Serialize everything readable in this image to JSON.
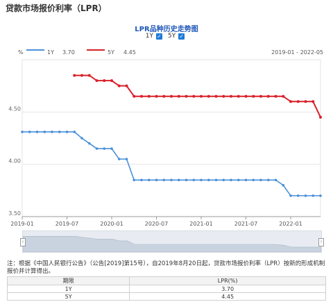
{
  "page_title": "贷款市场报价利率（LPR）",
  "chart_title": "LPR品种历史走势图",
  "toggles": [
    {
      "label": "1Y",
      "checked": true
    },
    {
      "label": "5Y",
      "checked": true
    }
  ],
  "legend": {
    "unit": "%",
    "one_y": {
      "name": "1Y",
      "value": "3.70",
      "color": "#4a90d9"
    },
    "five_y": {
      "name": "5Y",
      "value": "4.45",
      "color": "#d9202a"
    },
    "date_range": "2019-01 - 2022-05"
  },
  "chart_data": {
    "type": "line",
    "x_ticks": [
      "2019-01",
      "2019-07",
      "2020-01",
      "2020-07",
      "2021-01",
      "2021-07",
      "2022-01"
    ],
    "y_ticks": [
      "3.50",
      "4.00",
      "4.50"
    ],
    "ylim": [
      3.5,
      5.0
    ],
    "xlim": [
      "2019-01",
      "2022-05"
    ],
    "grid": true,
    "series": [
      {
        "name": "1Y",
        "color": "#4a90d9",
        "points": [
          [
            "2019-01",
            4.31
          ],
          [
            "2019-02",
            4.31
          ],
          [
            "2019-03",
            4.31
          ],
          [
            "2019-04",
            4.31
          ],
          [
            "2019-05",
            4.31
          ],
          [
            "2019-06",
            4.31
          ],
          [
            "2019-07",
            4.31
          ],
          [
            "2019-08",
            4.31
          ],
          [
            "2019-09",
            4.25
          ],
          [
            "2019-10",
            4.2
          ],
          [
            "2019-11",
            4.15
          ],
          [
            "2019-12",
            4.15
          ],
          [
            "2020-01",
            4.15
          ],
          [
            "2020-02",
            4.05
          ],
          [
            "2020-03",
            4.05
          ],
          [
            "2020-04",
            3.85
          ],
          [
            "2020-05",
            3.85
          ],
          [
            "2020-06",
            3.85
          ],
          [
            "2020-07",
            3.85
          ],
          [
            "2020-08",
            3.85
          ],
          [
            "2020-09",
            3.85
          ],
          [
            "2020-10",
            3.85
          ],
          [
            "2020-11",
            3.85
          ],
          [
            "2020-12",
            3.85
          ],
          [
            "2021-01",
            3.85
          ],
          [
            "2021-02",
            3.85
          ],
          [
            "2021-03",
            3.85
          ],
          [
            "2021-04",
            3.85
          ],
          [
            "2021-05",
            3.85
          ],
          [
            "2021-06",
            3.85
          ],
          [
            "2021-07",
            3.85
          ],
          [
            "2021-08",
            3.85
          ],
          [
            "2021-09",
            3.85
          ],
          [
            "2021-10",
            3.85
          ],
          [
            "2021-11",
            3.85
          ],
          [
            "2021-12",
            3.8
          ],
          [
            "2022-01",
            3.7
          ],
          [
            "2022-02",
            3.7
          ],
          [
            "2022-03",
            3.7
          ],
          [
            "2022-04",
            3.7
          ],
          [
            "2022-05",
            3.7
          ]
        ]
      },
      {
        "name": "5Y",
        "color": "#d9202a",
        "points": [
          [
            "2019-08",
            4.85
          ],
          [
            "2019-09",
            4.85
          ],
          [
            "2019-10",
            4.85
          ],
          [
            "2019-11",
            4.8
          ],
          [
            "2019-12",
            4.8
          ],
          [
            "2020-01",
            4.8
          ],
          [
            "2020-02",
            4.75
          ],
          [
            "2020-03",
            4.75
          ],
          [
            "2020-04",
            4.65
          ],
          [
            "2020-05",
            4.65
          ],
          [
            "2020-06",
            4.65
          ],
          [
            "2020-07",
            4.65
          ],
          [
            "2020-08",
            4.65
          ],
          [
            "2020-09",
            4.65
          ],
          [
            "2020-10",
            4.65
          ],
          [
            "2020-11",
            4.65
          ],
          [
            "2020-12",
            4.65
          ],
          [
            "2021-01",
            4.65
          ],
          [
            "2021-02",
            4.65
          ],
          [
            "2021-03",
            4.65
          ],
          [
            "2021-04",
            4.65
          ],
          [
            "2021-05",
            4.65
          ],
          [
            "2021-06",
            4.65
          ],
          [
            "2021-07",
            4.65
          ],
          [
            "2021-08",
            4.65
          ],
          [
            "2021-09",
            4.65
          ],
          [
            "2021-10",
            4.65
          ],
          [
            "2021-11",
            4.65
          ],
          [
            "2021-12",
            4.65
          ],
          [
            "2022-01",
            4.6
          ],
          [
            "2022-02",
            4.6
          ],
          [
            "2022-03",
            4.6
          ],
          [
            "2022-04",
            4.6
          ],
          [
            "2022-05",
            4.45
          ]
        ]
      }
    ]
  },
  "note": "注：根据《中国人民银行公告》（公告[2019]第15号），自2019年8月20日起，贷款市场报价利率（LPR）按新的形成机制报价并计算得出。",
  "table": {
    "headers": [
      "期限",
      "LPR(%)"
    ],
    "rows": [
      [
        "1Y",
        "3.70"
      ],
      [
        "5Y",
        "4.45"
      ]
    ]
  }
}
